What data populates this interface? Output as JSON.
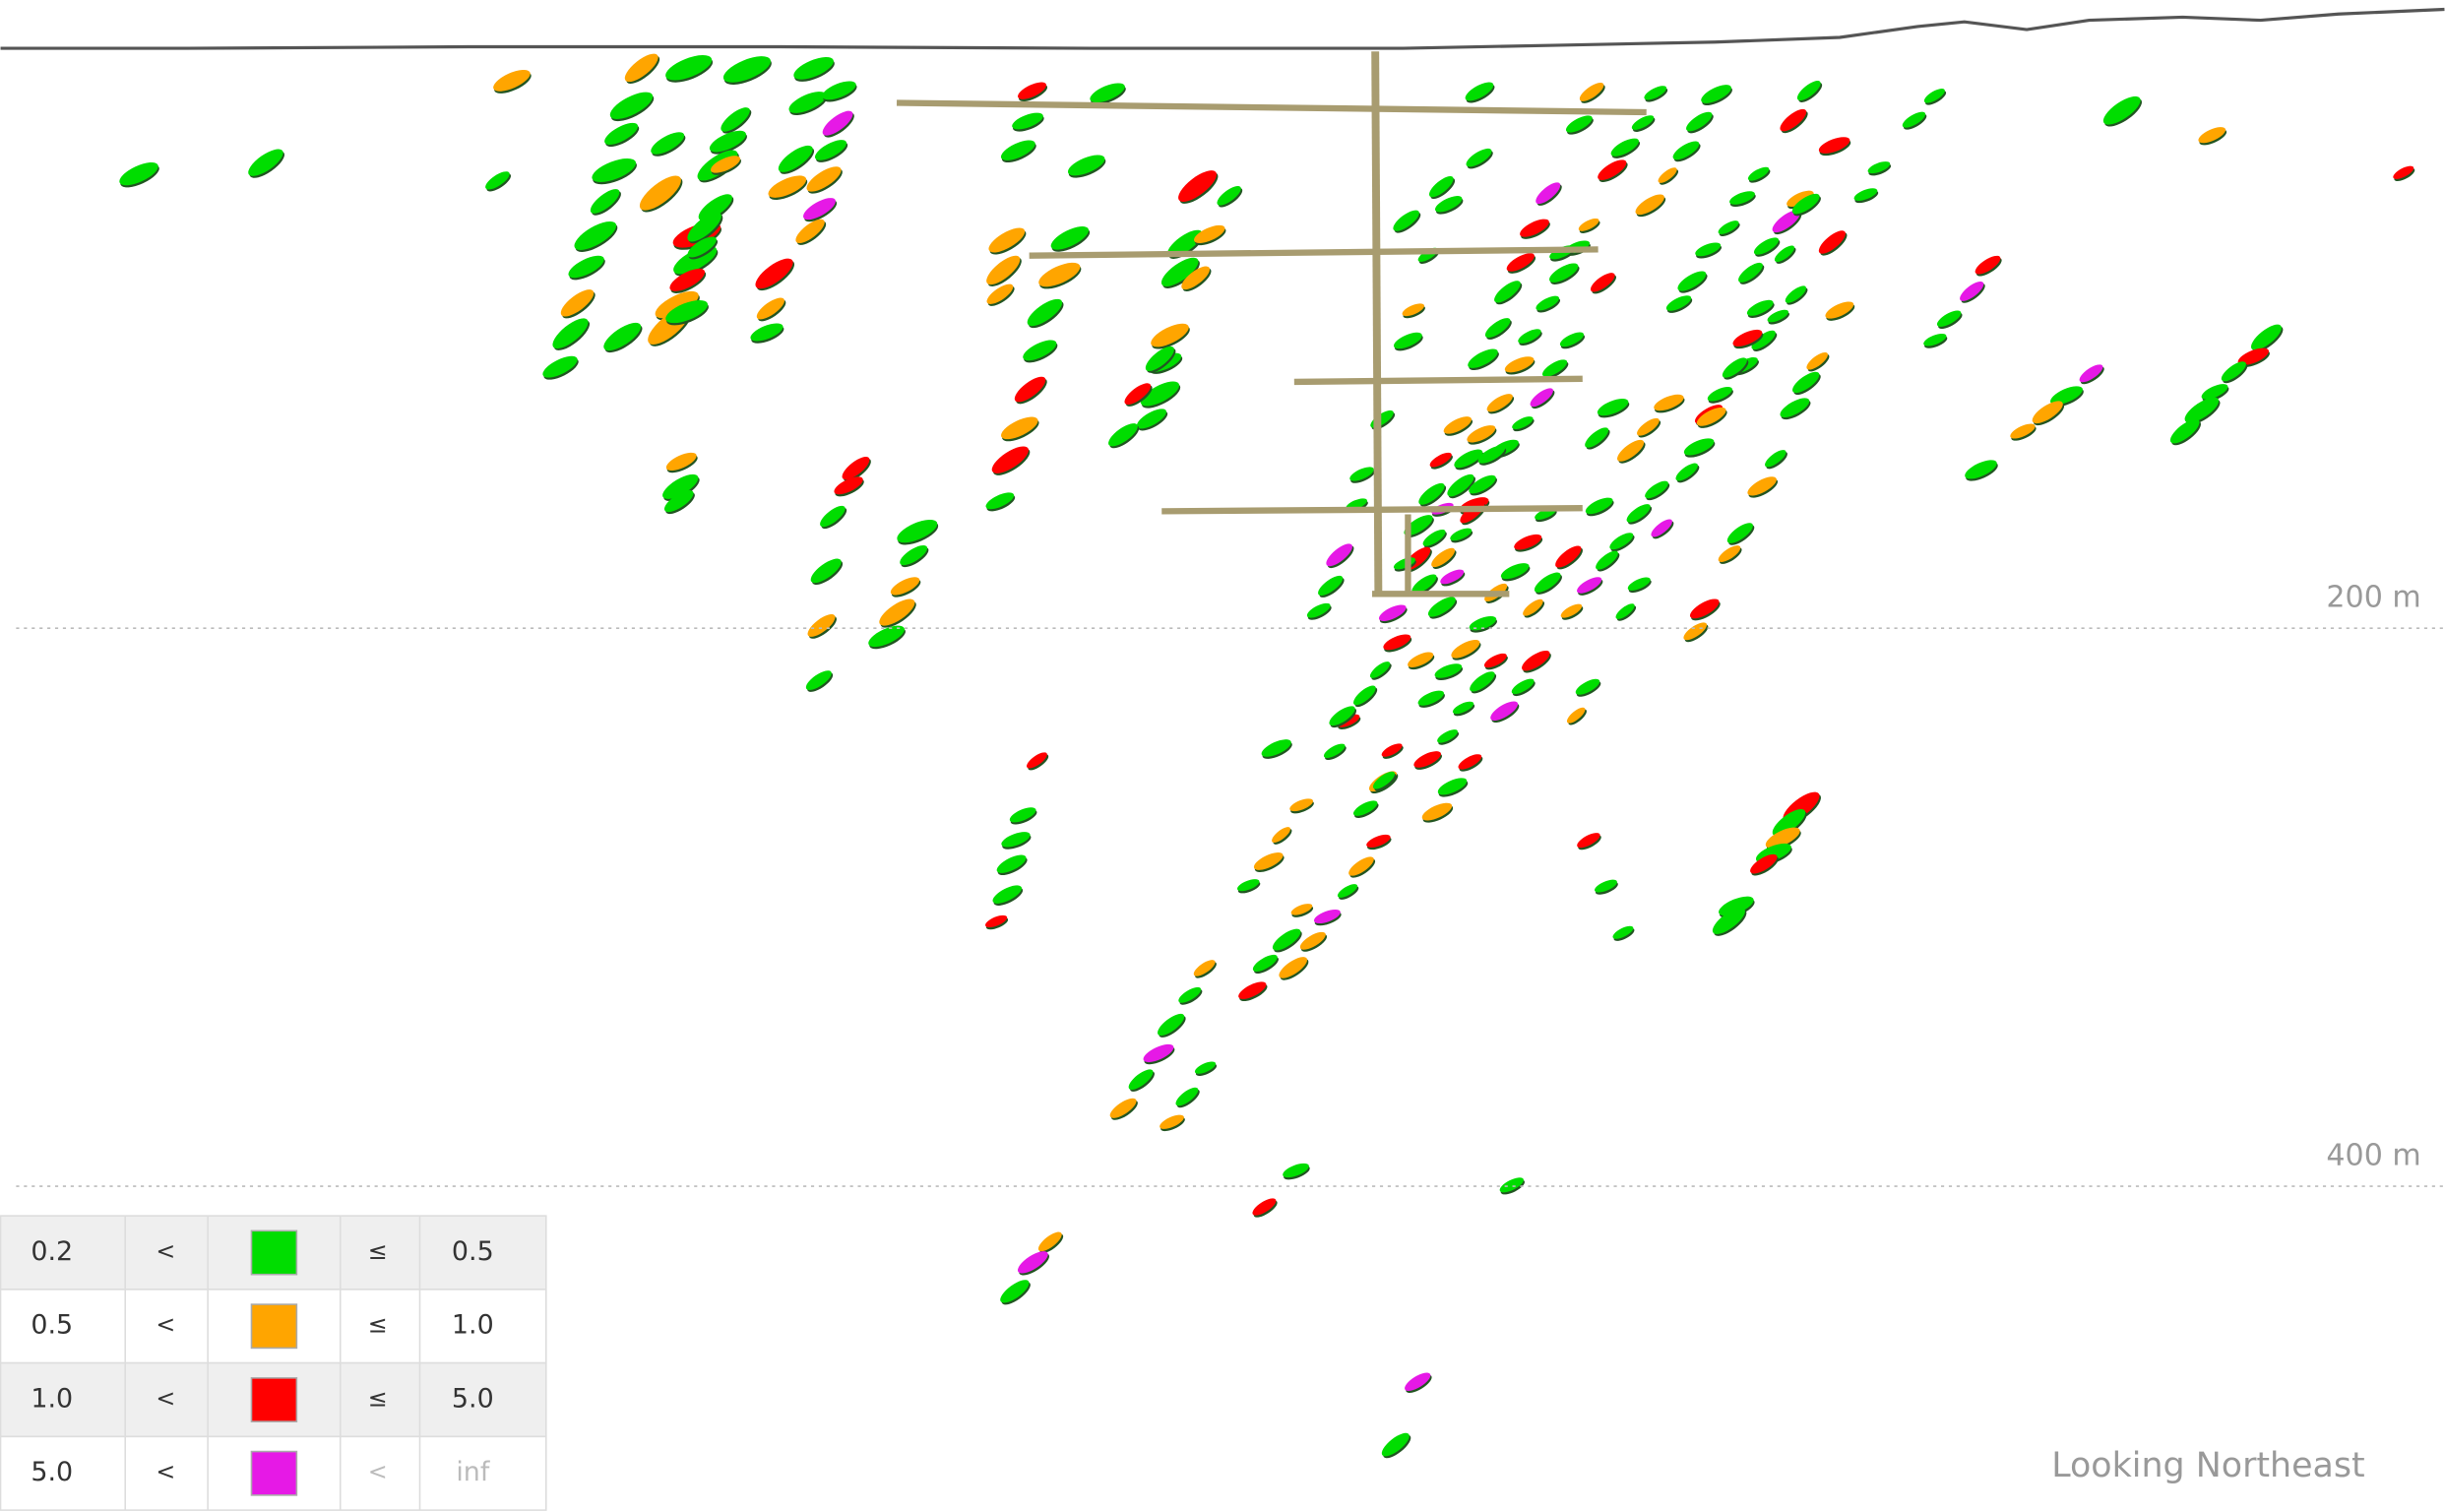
{
  "depth_labels": [
    "200 m",
    "400 m"
  ],
  "legend": {
    "rows": [
      {
        "from": "0.2",
        "op1": "<",
        "color": "#00dd00",
        "op2": "≤",
        "to": "0.5"
      },
      {
        "from": "0.5",
        "op1": "<",
        "color": "#ffa500",
        "op2": "≤",
        "to": "1.0"
      },
      {
        "from": "1.0",
        "op1": "<",
        "color": "#ff0000",
        "op2": "≤",
        "to": "5.0"
      },
      {
        "from": "5.0",
        "op1": "<",
        "color": "#e619e6",
        "op2": "<",
        "to": "inf"
      }
    ]
  },
  "view_label": "Looking Northeast"
}
